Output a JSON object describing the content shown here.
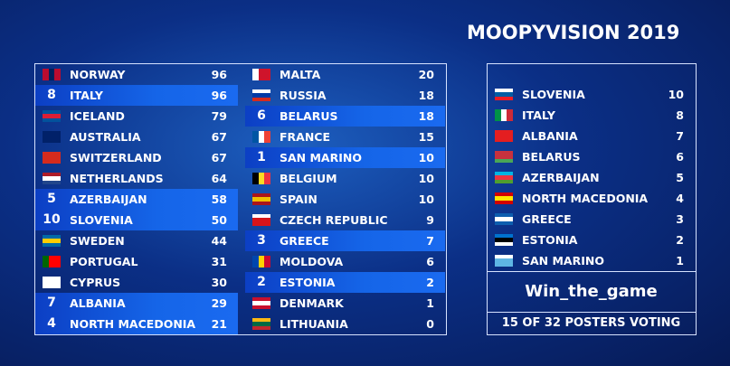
{
  "title": "MOOPYVISION 2019",
  "scoreboard": {
    "columns": [
      [
        {
          "country": "NORWAY",
          "points": 96
        },
        {
          "country": "ITALY",
          "points": 96,
          "given": 8
        },
        {
          "country": "ICELAND",
          "points": 79
        },
        {
          "country": "AUSTRALIA",
          "points": 67
        },
        {
          "country": "SWITZERLAND",
          "points": 67
        },
        {
          "country": "NETHERLANDS",
          "points": 64
        },
        {
          "country": "AZERBAIJAN",
          "points": 58,
          "given": 5
        },
        {
          "country": "SLOVENIA",
          "points": 50,
          "given": 10
        },
        {
          "country": "SWEDEN",
          "points": 44
        },
        {
          "country": "PORTUGAL",
          "points": 31
        },
        {
          "country": "CYPRUS",
          "points": 30
        },
        {
          "country": "ALBANIA",
          "points": 29,
          "given": 7
        },
        {
          "country": "NORTH MACEDONIA",
          "points": 21,
          "given": 4
        }
      ],
      [
        {
          "country": "MALTA",
          "points": 20
        },
        {
          "country": "RUSSIA",
          "points": 18
        },
        {
          "country": "BELARUS",
          "points": 18,
          "given": 6
        },
        {
          "country": "FRANCE",
          "points": 15
        },
        {
          "country": "SAN MARINO",
          "points": 10,
          "given": 1
        },
        {
          "country": "BELGIUM",
          "points": 10
        },
        {
          "country": "SPAIN",
          "points": 10
        },
        {
          "country": "CZECH REPUBLIC",
          "points": 9
        },
        {
          "country": "GREECE",
          "points": 7,
          "given": 3
        },
        {
          "country": "MOLDOVA",
          "points": 6
        },
        {
          "country": "ESTONIA",
          "points": 2,
          "given": 2
        },
        {
          "country": "DENMARK",
          "points": 1
        },
        {
          "country": "LITHUANIA",
          "points": 0
        }
      ]
    ]
  },
  "voting": {
    "given": [
      {
        "country": "SLOVENIA",
        "points": 10
      },
      {
        "country": "ITALY",
        "points": 8
      },
      {
        "country": "ALBANIA",
        "points": 7
      },
      {
        "country": "BELARUS",
        "points": 6
      },
      {
        "country": "AZERBAIJAN",
        "points": 5
      },
      {
        "country": "NORTH MACEDONIA",
        "points": 4
      },
      {
        "country": "GREECE",
        "points": 3
      },
      {
        "country": "ESTONIA",
        "points": 2
      },
      {
        "country": "SAN MARINO",
        "points": 1
      }
    ],
    "voter": "Win_the_game",
    "status": "15 OF 32 POSTERS VOTING"
  }
}
